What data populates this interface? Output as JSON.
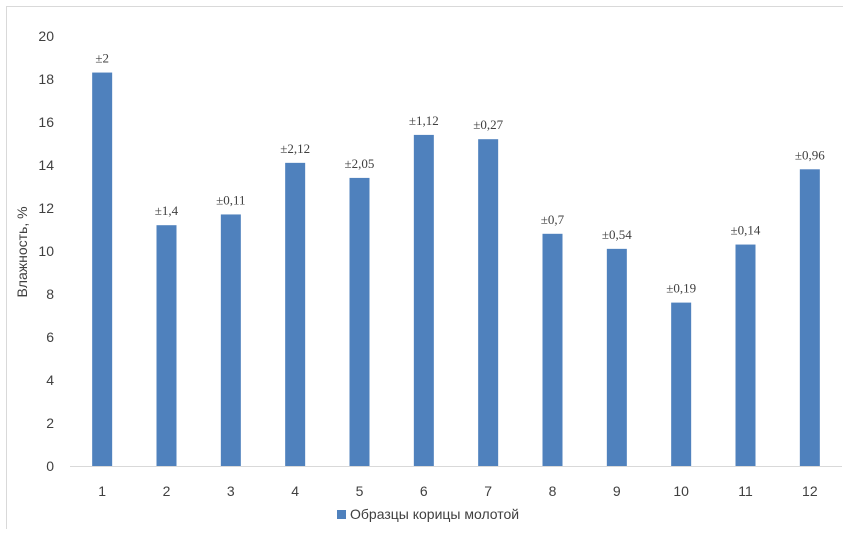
{
  "chart_data": {
    "type": "bar",
    "title": "",
    "xlabel": "",
    "ylabel": "Влажность, %",
    "ylim": [
      0,
      20
    ],
    "yticks": [
      0,
      2,
      4,
      6,
      8,
      10,
      12,
      14,
      16,
      18,
      20
    ],
    "grid": false,
    "legend_position": "bottom",
    "colors": {
      "bar": "#4f81bd",
      "axis": "#d9d9d9",
      "text": "#404040"
    },
    "categories": [
      "1",
      "2",
      "3",
      "4",
      "5",
      "6",
      "7",
      "8",
      "9",
      "10",
      "11",
      "12"
    ],
    "series": [
      {
        "name": "Образцы корицы молотой",
        "values": [
          18.3,
          11.2,
          11.7,
          14.1,
          13.4,
          15.4,
          15.2,
          10.8,
          10.1,
          7.6,
          10.3,
          13.8
        ],
        "labels": [
          "±2",
          "±1,4",
          "±0,11",
          "±2,12",
          "±2,05",
          "±1,12",
          "±0,27",
          "±0,7",
          "±0,54",
          "±0,19",
          "±0,14",
          "±0,96"
        ]
      }
    ]
  }
}
